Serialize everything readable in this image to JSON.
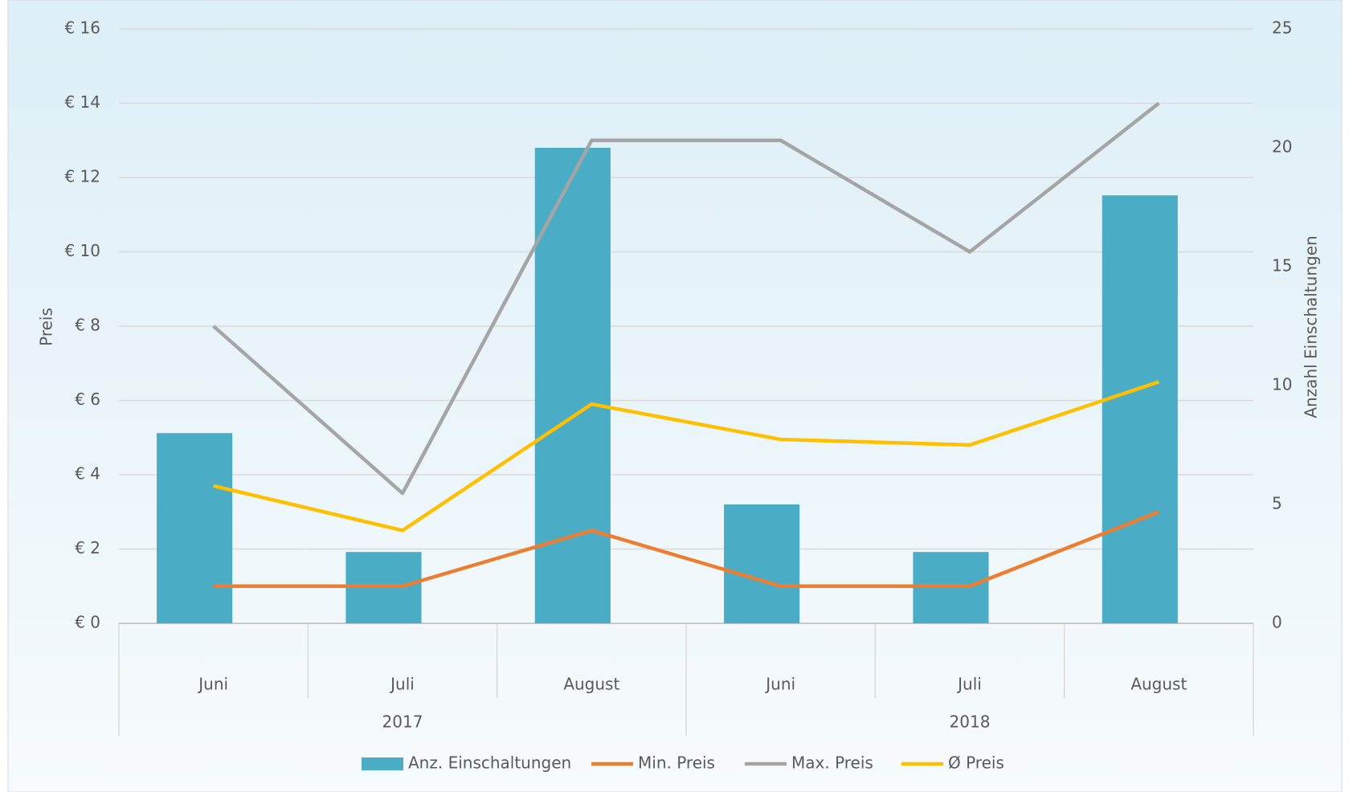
{
  "chart_data": {
    "type": "combo",
    "categories": [
      "Juni",
      "Juli",
      "August",
      "Juni",
      "Juli",
      "August"
    ],
    "category_groups": [
      "2017",
      "2018"
    ],
    "ylabel": "Preis",
    "y2label": "Anzahl Einschaltungen",
    "ylim": [
      0,
      16
    ],
    "yticks": [
      {
        "value": 0,
        "label": "€ 0"
      },
      {
        "value": 2,
        "label": "€ 2"
      },
      {
        "value": 4,
        "label": "€ 4"
      },
      {
        "value": 6,
        "label": "€ 6"
      },
      {
        "value": 8,
        "label": "€ 8"
      },
      {
        "value": 10,
        "label": "€ 10"
      },
      {
        "value": 12,
        "label": "€ 12"
      },
      {
        "value": 14,
        "label": "€ 14"
      },
      {
        "value": 16,
        "label": "€ 16"
      }
    ],
    "y2lim": [
      0,
      25
    ],
    "y2ticks": [
      0,
      5,
      10,
      15,
      20,
      25
    ],
    "grid": true,
    "legend": "bottom",
    "series": [
      {
        "name": "Anz. Einschaltungen",
        "type": "bar",
        "axis": "y2",
        "color": "#4bacc6",
        "values": [
          8,
          3,
          20,
          5,
          3,
          18
        ]
      },
      {
        "name": "Min. Preis",
        "type": "line",
        "color": "#ed7d31",
        "values": [
          1,
          1,
          2.5,
          1,
          1,
          3
        ]
      },
      {
        "name": "Max. Preis",
        "type": "line",
        "color": "#a5a5a5",
        "values": [
          8,
          3.5,
          13,
          13,
          10,
          14
        ]
      },
      {
        "name": "Ø Preis",
        "type": "line",
        "color": "#ffc000",
        "values": [
          3.7,
          2.5,
          5.9,
          4.95,
          4.8,
          6.5
        ]
      }
    ]
  }
}
